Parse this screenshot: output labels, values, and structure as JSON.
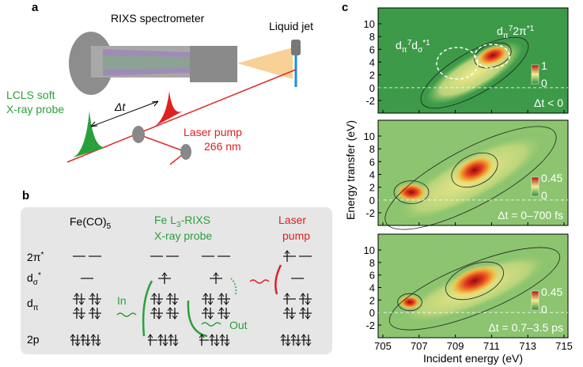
{
  "panel_a": {
    "label": "a",
    "spectrometer": "RIXS spectrometer",
    "jet": "Liquid jet",
    "probe_1": "LCLS soft",
    "probe_2": "X-ray probe",
    "delay": "Δt",
    "pump_1": "Laser pump",
    "pump_2": "266 nm"
  },
  "panel_b": {
    "label": "b",
    "molecule": [
      "Fe(CO)",
      "5"
    ],
    "probe_1": [
      "Fe L",
      "3",
      "-RIXS"
    ],
    "probe_2": "X-ray probe",
    "pump_1": "Laser",
    "pump_2": "pump",
    "levels": [
      [
        "2π",
        "*"
      ],
      [
        "d",
        "σ",
        "*"
      ],
      [
        "d",
        "π"
      ],
      [
        "2p"
      ]
    ],
    "in": "In",
    "out": "Out"
  },
  "panel_c": {
    "label": "c",
    "y_label": "Energy transfer (eV)",
    "x_label": "Incident energy (eV)",
    "xticks": [
      705,
      707,
      709,
      711,
      713,
      715
    ],
    "yticks": [
      -2,
      0,
      2,
      4,
      6,
      8,
      10
    ],
    "state_1": [
      "d",
      "π",
      "7",
      "d",
      "σ",
      "*1"
    ],
    "state_2": [
      "d",
      "π",
      "7",
      "2π",
      "*1"
    ],
    "maps": [
      {
        "delay": "Δt < 0",
        "colorbar": [
          1,
          0
        ]
      },
      {
        "delay": "Δt = 0–700 fs",
        "colorbar": [
          0.45,
          0
        ]
      },
      {
        "delay": "Δt = 0.7–3.5 ps",
        "colorbar": [
          0.45,
          0
        ]
      }
    ]
  }
}
